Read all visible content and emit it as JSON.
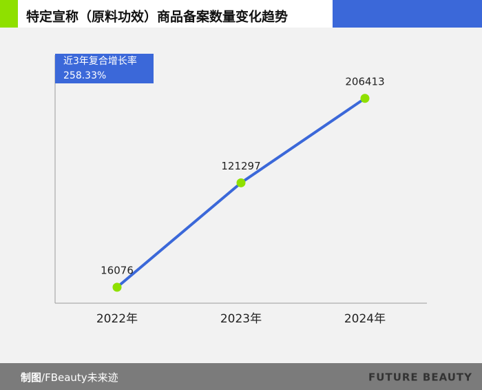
{
  "chart_data": {
    "type": "line",
    "title": "特定宣称（原料功效）商品备案数量变化趋势",
    "categories": [
      "2022年",
      "2023年",
      "2024年"
    ],
    "series": [
      {
        "name": "商品备案数量",
        "color": "#3b68d9",
        "marker_color": "#8fe000",
        "values": [
          16076,
          121297,
          206413
        ]
      }
    ],
    "ylim": [
      0,
      250000
    ],
    "annotation": {
      "label": "近3年复合增长率",
      "value": "258.33%"
    }
  },
  "footer": {
    "credit_label": "制图",
    "credit_source": "/FBeauty未来迹",
    "brand": "FUTURE BEAUTY"
  }
}
